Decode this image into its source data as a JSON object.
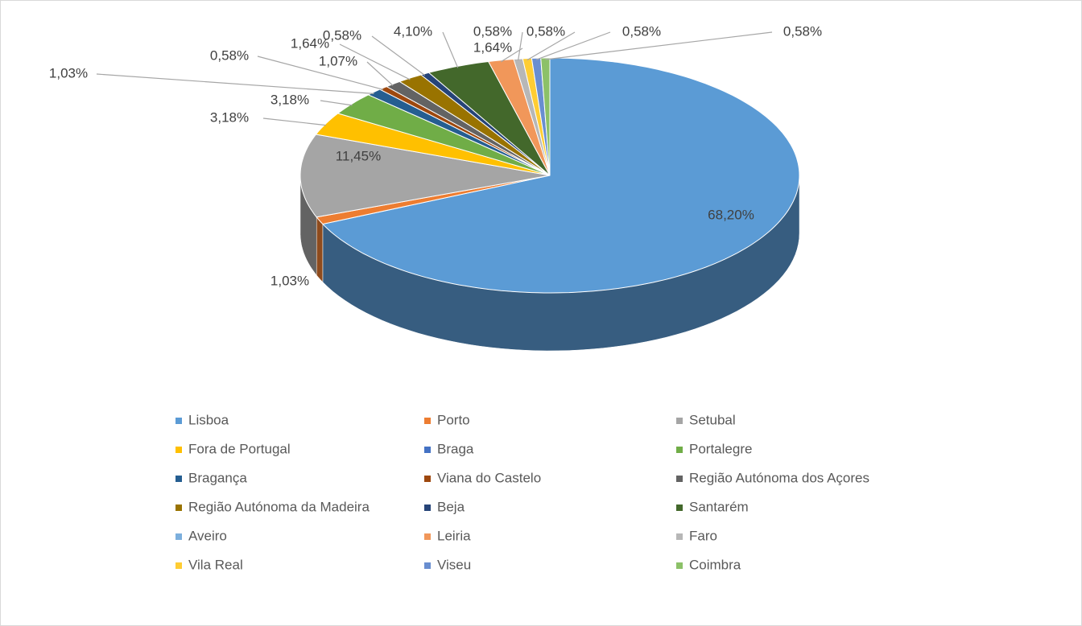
{
  "chart_data": {
    "type": "pie3d",
    "categories": [
      "Lisboa",
      "Porto",
      "Setubal",
      "Fora de Portugal",
      "Braga",
      "Portalegre",
      "Bragança",
      "Viana do Castelo",
      "Região Autónoma dos Açores",
      "Região Autónoma da Madeira",
      "Beja",
      "Santarém",
      "Aveiro",
      "Leiria",
      "Faro",
      "Vila Real",
      "Viseu",
      "Coimbra"
    ],
    "values": [
      68.2,
      1.03,
      11.45,
      3.18,
      0,
      3.18,
      1.03,
      0.58,
      1.07,
      1.64,
      0.58,
      4.1,
      0,
      1.64,
      0.58,
      0.58,
      0.58,
      0.58
    ],
    "value_labels": [
      "68,20%",
      "1,03%",
      "11,45%",
      "3,18%",
      null,
      "3,18%",
      "1,03%",
      "0,58%",
      "1,07%",
      "1,64%",
      "0,58%",
      "4,10%",
      null,
      "1,64%",
      "0,58%",
      "0,58%",
      "0,58%",
      "0,58%"
    ],
    "colors": [
      "#5b9bd5",
      "#ed7d31",
      "#a5a5a5",
      "#ffc000",
      "#4472c4",
      "#70ad47",
      "#255e91",
      "#9e480e",
      "#636363",
      "#997300",
      "#264478",
      "#43682b",
      "#7cafdd",
      "#f1975a",
      "#b7b7b7",
      "#ffcd33",
      "#698ed0",
      "#8cc168"
    ],
    "legend": "bottom"
  }
}
